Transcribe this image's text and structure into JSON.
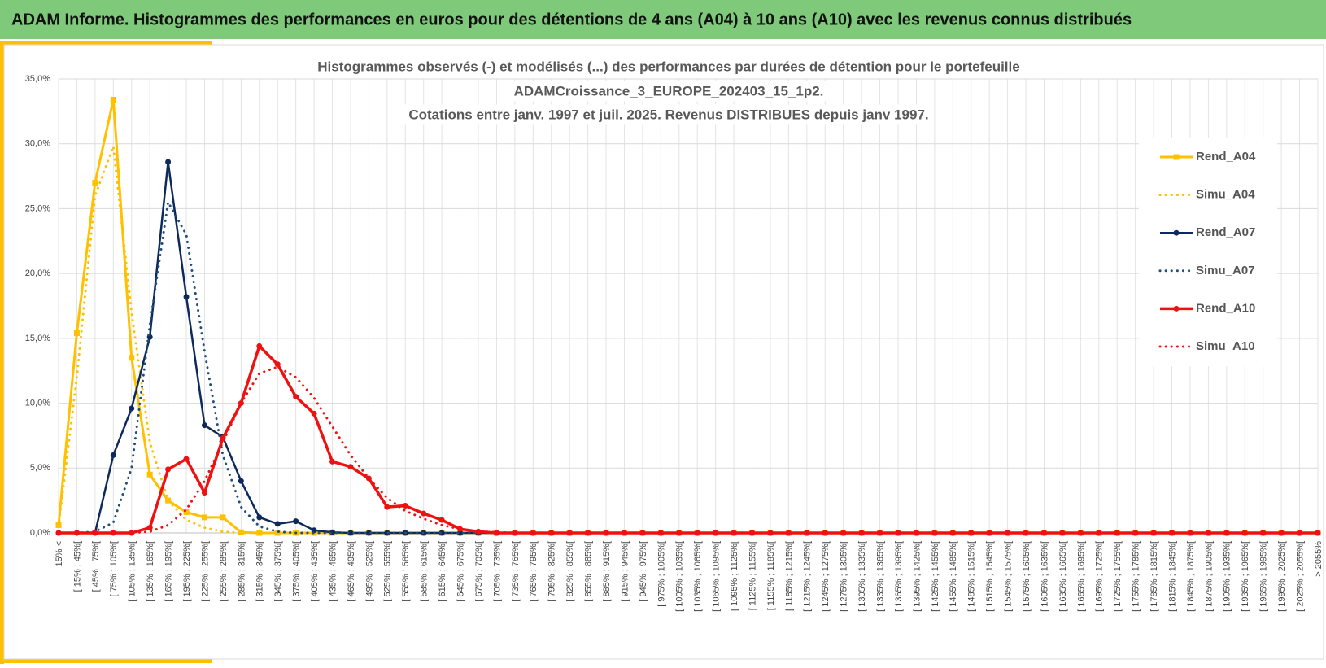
{
  "header": {
    "title": "ADAM Informe. Histogrammes des performances en euros pour des détentions de 4 ans (A04) à 10 ans (A10) avec les revenus connus distribués"
  },
  "chart_data": {
    "type": "line",
    "title": [
      "Histogrammes observés (-) et modélisés (...) des performances par durées de détention pour  le portefeuille",
      "ADAMCroissance_3_EUROPE_202403_15_1p2.",
      "Cotations entre janv. 1997 et juil. 2025. Revenus DISTRIBUES depuis janv 1997."
    ],
    "categories": [
      "15% <",
      "[ 15% ; 45%[",
      "[ 45% ; 75%[",
      "[ 75% ; 105%[",
      "[ 105% ; 135%[",
      "[ 135% ; 165%[",
      "[ 165% ; 195%[",
      "[ 195% ; 225%[",
      "[ 225% ; 255%[",
      "[ 255% ; 285%[",
      "[ 285% ; 315%[",
      "[ 315% ; 345%[",
      "[ 345% ; 375%[",
      "[ 375% ; 405%[",
      "[ 405% ; 435%[",
      "[ 435% ; 465%[",
      "[ 465% ; 495%[",
      "[ 495% ; 525%[",
      "[ 525% ; 555%[",
      "[ 555% ; 585%[",
      "[ 585% ; 615%[",
      "[ 615% ; 645%[",
      "[ 645% ; 675%[",
      "[ 675% ; 705%[",
      "[ 705% ; 735%[",
      "[ 735% ; 765%[",
      "[ 765% ; 795%[",
      "[ 795% ; 825%[",
      "[ 825% ; 855%[",
      "[ 855% ; 885%[",
      "[ 885% ; 915%[",
      "[ 915% ; 945%[",
      "[ 945% ; 975%[",
      "[ 975% ; 1005%[",
      "[ 1005% ; 1035%[",
      "[ 1035% ; 1065%[",
      "[ 1065% ; 1095%[",
      "[ 1095% ; 1125%[",
      "[ 1125% ; 1155%[",
      "[ 1155% ; 1185%[",
      "[ 1185% ; 1215%[",
      "[ 1215% ; 1245%[",
      "[ 1245% ; 1275%[",
      "[ 1275% ; 1305%[",
      "[ 1305% ; 1335%[",
      "[ 1335% ; 1365%[",
      "[ 1365% ; 1395%[",
      "[ 1395% ; 1425%[",
      "[ 1425% ; 1455%[",
      "[ 1455% ; 1485%[",
      "[ 1485% ; 1515%[",
      "[ 1515% ; 1545%[",
      "[ 1545% ; 1575%[",
      "[ 1575% ; 1605%[",
      "[ 1605% ; 1635%[",
      "[ 1635% ; 1665%[",
      "[ 1665% ; 1695%[",
      "[ 1695% ; 1725%[",
      "[ 1725% ; 1755%[",
      "[ 1755% ; 1785%[",
      "[ 1785% ; 1815%[",
      "[ 1815% ; 1845%[",
      "[ 1845% ; 1875%[",
      "[ 1875% ; 1905%[",
      "[ 1905% ; 1935%[",
      "[ 1935% ; 1965%[",
      "[ 1965% ; 1995%[",
      "[ 1995% ; 2025%[",
      "[ 2025% ; 2055%[",
      "> 2055%"
    ],
    "series": [
      {
        "name": "Rend_A04",
        "color": "#ffc000",
        "dashed": false,
        "marker": "square",
        "width": 3,
        "values": [
          0.6,
          15.4,
          27,
          33.4,
          13.5,
          4.5,
          2.5,
          1.6,
          1.2,
          1.2,
          0.05,
          0,
          0,
          0,
          0,
          0,
          0,
          0,
          0,
          0,
          0,
          0,
          0,
          0,
          0,
          0,
          0,
          0,
          0,
          0,
          0,
          0,
          0,
          0,
          0,
          0,
          0,
          0,
          0,
          0,
          0,
          0,
          0,
          0,
          0,
          0,
          0,
          0,
          0,
          0,
          0,
          0,
          0,
          0,
          0,
          0,
          0,
          0,
          0,
          0,
          0,
          0,
          0,
          0,
          0,
          0,
          0,
          0,
          0,
          0
        ]
      },
      {
        "name": "Simu_A04",
        "color": "#ffc000",
        "dashed": true,
        "marker": null,
        "width": 3,
        "values": [
          0.5,
          12,
          26,
          29.8,
          17,
          7,
          2.5,
          1,
          0.4,
          0.1,
          0,
          0,
          0,
          0,
          0,
          0,
          0,
          0,
          0,
          0,
          0,
          0,
          0,
          0,
          0,
          0,
          0,
          0,
          0,
          0,
          0,
          0,
          0,
          0,
          0,
          0,
          0,
          0,
          0,
          0,
          0,
          0,
          0,
          0,
          0,
          0,
          0,
          0,
          0,
          0,
          0,
          0,
          0,
          0,
          0,
          0,
          0,
          0,
          0,
          0,
          0,
          0,
          0,
          0,
          0,
          0,
          0,
          0,
          0,
          0
        ]
      },
      {
        "name": "Rend_A07",
        "color": "#0e2a5c",
        "dashed": false,
        "marker": "circle",
        "width": 2.5,
        "values": [
          0,
          0,
          0,
          6,
          9.6,
          15.1,
          28.6,
          18.2,
          8.3,
          7.4,
          4,
          1.2,
          0.7,
          0.9,
          0.2,
          0.05,
          0,
          0,
          0,
          0,
          0,
          0,
          0,
          0,
          0,
          0,
          0,
          0,
          0,
          0,
          0,
          0,
          0,
          0,
          0,
          0,
          0,
          0,
          0,
          0,
          0,
          0,
          0,
          0,
          0,
          0,
          0,
          0,
          0,
          0,
          0,
          0,
          0,
          0,
          0,
          0,
          0,
          0,
          0,
          0,
          0,
          0,
          0,
          0,
          0,
          0,
          0,
          0,
          0,
          0
        ]
      },
      {
        "name": "Simu_A07",
        "color": "#1f4e79",
        "dashed": true,
        "marker": null,
        "width": 3,
        "values": [
          0,
          0,
          0.1,
          0.8,
          5,
          16,
          25.5,
          23,
          14,
          6,
          2,
          0.5,
          0.1,
          0,
          0,
          0,
          0,
          0,
          0,
          0,
          0,
          0,
          0,
          0,
          0,
          0,
          0,
          0,
          0,
          0,
          0,
          0,
          0,
          0,
          0,
          0,
          0,
          0,
          0,
          0,
          0,
          0,
          0,
          0,
          0,
          0,
          0,
          0,
          0,
          0,
          0,
          0,
          0,
          0,
          0,
          0,
          0,
          0,
          0,
          0,
          0,
          0,
          0,
          0,
          0,
          0,
          0,
          0,
          0,
          0
        ]
      },
      {
        "name": "Rend_A10",
        "color": "#ee1111",
        "dashed": false,
        "marker": "circle",
        "width": 3.5,
        "values": [
          0,
          0,
          0,
          0,
          0,
          0.4,
          4.9,
          5.7,
          3.1,
          7.3,
          10,
          14.4,
          13,
          10.5,
          9.2,
          5.5,
          5.1,
          4.2,
          2,
          2.1,
          1.5,
          1,
          0.3,
          0.1,
          0,
          0,
          0,
          0,
          0,
          0,
          0,
          0,
          0,
          0,
          0,
          0,
          0,
          0,
          0,
          0,
          0,
          0,
          0,
          0,
          0,
          0,
          0,
          0,
          0,
          0,
          0,
          0,
          0,
          0,
          0,
          0,
          0,
          0,
          0,
          0,
          0,
          0,
          0,
          0,
          0,
          0,
          0,
          0,
          0,
          0
        ]
      },
      {
        "name": "Simu_A10",
        "color": "#ee1111",
        "dashed": true,
        "marker": null,
        "width": 3,
        "values": [
          0,
          0,
          0,
          0,
          0,
          0.1,
          0.6,
          1.8,
          4,
          7,
          10,
          12.3,
          12.8,
          12,
          10.4,
          8.2,
          6,
          4.2,
          2.7,
          1.7,
          1.1,
          0.6,
          0.3,
          0.1,
          0.05,
          0,
          0,
          0,
          0,
          0,
          0,
          0,
          0,
          0,
          0,
          0,
          0,
          0,
          0,
          0,
          0,
          0,
          0,
          0,
          0,
          0,
          0,
          0,
          0,
          0,
          0,
          0,
          0,
          0,
          0,
          0,
          0,
          0,
          0,
          0,
          0,
          0,
          0,
          0,
          0,
          0,
          0,
          0,
          0,
          0
        ]
      }
    ],
    "ylim": [
      0,
      35
    ],
    "yticks": [
      {
        "value": 0,
        "label": "0,0%"
      },
      {
        "value": 5,
        "label": "5,0%"
      },
      {
        "value": 10,
        "label": "10,0%"
      },
      {
        "value": 15,
        "label": "15,0%"
      },
      {
        "value": 20,
        "label": "20,0%"
      },
      {
        "value": 25,
        "label": "25,0%"
      },
      {
        "value": 30,
        "label": "30,0%"
      },
      {
        "value": 35,
        "label": "35,0%"
      }
    ],
    "grid": true,
    "legend": "right"
  }
}
